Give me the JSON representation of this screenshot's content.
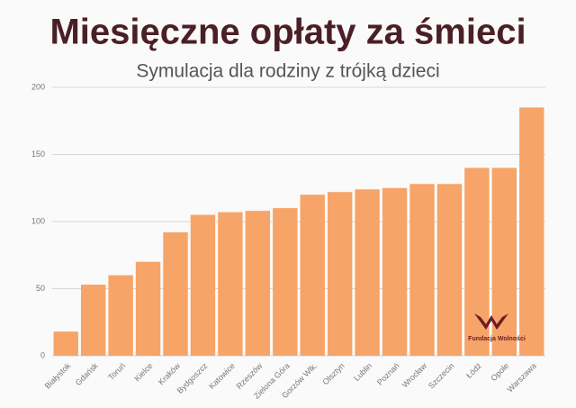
{
  "chart_data": {
    "type": "bar",
    "title": "Miesięczne opłaty za śmieci",
    "subtitle": "Symulacja dla rodziny z trójką dzieci",
    "categories": [
      "Białystok",
      "Gdańsk",
      "Toruń",
      "Kielce",
      "Kraków",
      "Bydgoszcz",
      "Katowice",
      "Rzeszów",
      "Zielona Góra",
      "Gorzów Wlk.",
      "Olsztyn",
      "Lublin",
      "Poznań",
      "Wrocław",
      "Szczecin",
      "Łódź",
      "Opole",
      "Warszawa"
    ],
    "values": [
      18,
      53,
      60,
      70,
      92,
      105,
      107,
      108,
      110,
      120,
      122,
      124,
      125,
      128,
      128,
      140,
      140,
      185
    ],
    "color": "#f7a468",
    "ylim": [
      0,
      200
    ],
    "yticks": [
      0,
      50,
      100,
      150,
      200
    ],
    "grid": true,
    "annotation": "Fundacja Wolności"
  }
}
